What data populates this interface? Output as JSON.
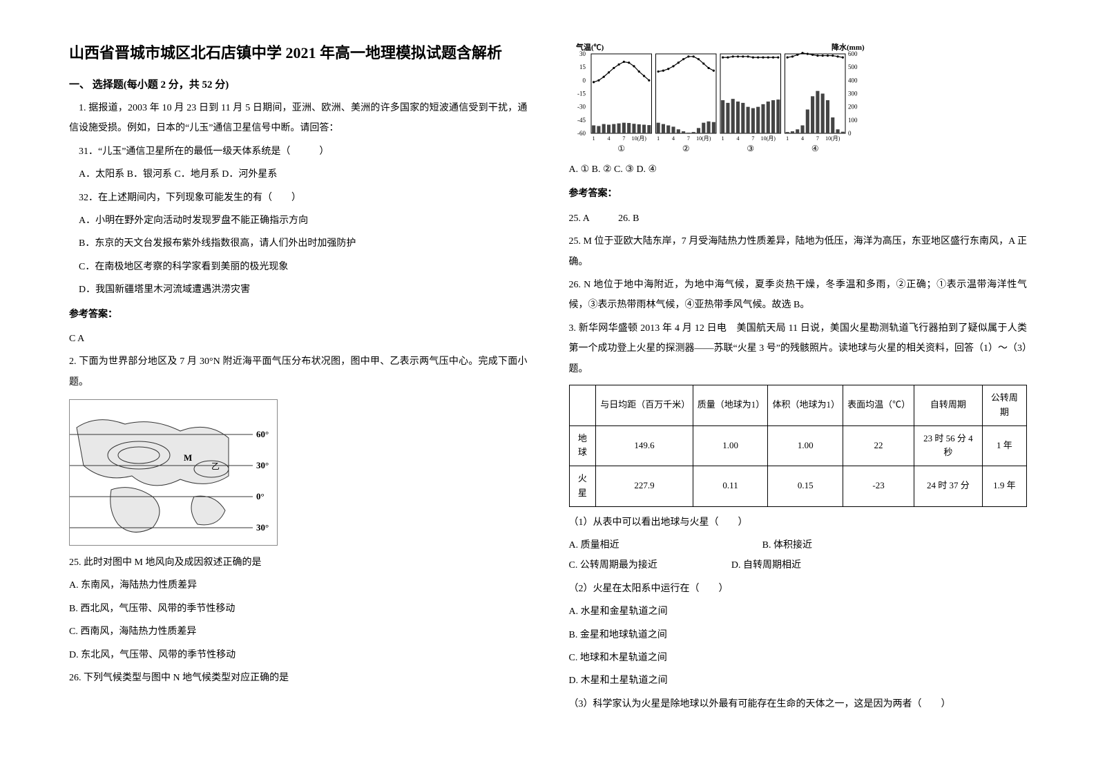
{
  "title": "山西省晋城市城区北石店镇中学 2021 年高一地理模拟试题含解析",
  "section1_title": "一、 选择题(每小题 2 分，共 52 分)",
  "q1": {
    "stem": "1. 据报道，2003 年 10 月 23 日到 11 月 5 日期间，亚洲、欧洲、美洲的许多国家的短波通信受到干扰，通信设施受损。例如，日本的“儿玉”通信卫星信号中断。请回答：",
    "sub31": "31．“儿玉”通信卫星所在的最低一级天体系统是（　　　）",
    "sub31_opts": "A．太阳系 B．银河系 C．地月系 D．河外星系",
    "sub32": "32．在上述期间内，下列现象可能发生的有（　　）",
    "sub32_a": "A．小明在野外定向活动时发现罗盘不能正确指示方向",
    "sub32_b": "B．东京的天文台发报布紫外线指数很高，请人们外出时加强防护",
    "sub32_c": "C．在南极地区考察的科学家看到美丽的极光现象",
    "sub32_d": "D．我国新疆塔里木河流域遭遇洪涝灾害",
    "answer_label": "参考答案：",
    "answer": "C A"
  },
  "q2": {
    "stem": "2. 下面为世界部分地区及 7 月 30°N 附近海平面气压分布状况图，图中甲、乙表示两气压中心。完成下面小题。",
    "map": {
      "lats": [
        "60°",
        "30°",
        "0°",
        "30°"
      ],
      "labels": [
        "M",
        "乙"
      ],
      "line_color": "#333333",
      "land_color": "#dddddd"
    },
    "q25": "25.  此时对图中 M 地风向及成因叙述正确的是",
    "q25_a": "A.  东南风，海陆热力性质差异",
    "q25_b": "B.  西北风，气压带、风带的季节性移动",
    "q25_c": "C.  西南风，海陆热力性质差异",
    "q25_d": "D.  东北风，气压带、风带的季节性移动",
    "q26": "26.  下列气候类型与图中 N 地气候类型对应正确的是"
  },
  "chart": {
    "title_left": "气温(℃)",
    "title_right": "降水(mm)",
    "y_left_ticks": [
      "30",
      "15",
      "0",
      "-15",
      "-30",
      "-45",
      "-60"
    ],
    "y_right_ticks": [
      "600",
      "500",
      "400",
      "300",
      "200",
      "100",
      "0"
    ],
    "x_ticks": [
      "1",
      "4",
      "7",
      "10(月)"
    ],
    "panel_labels": [
      "①",
      "②",
      "③",
      "④"
    ],
    "line_color": "#000000",
    "bar_color": "#444444",
    "grid_color": "#000000",
    "bg_color": "#ffffff",
    "series": {
      "p1": {
        "temp": [
          -2,
          0,
          4,
          9,
          14,
          18,
          21,
          20,
          16,
          10,
          5,
          0
        ],
        "prec": [
          60,
          55,
          70,
          65,
          70,
          75,
          80,
          78,
          72,
          68,
          65,
          62
        ]
      },
      "p2": {
        "temp": [
          10,
          11,
          13,
          16,
          20,
          24,
          27,
          27,
          24,
          19,
          14,
          11
        ],
        "prec": [
          80,
          70,
          60,
          50,
          30,
          15,
          5,
          10,
          40,
          80,
          90,
          85
        ]
      },
      "p3": {
        "temp": [
          26,
          26,
          27,
          27,
          27,
          27,
          26,
          26,
          26,
          26,
          26,
          26
        ],
        "prec": [
          250,
          230,
          260,
          240,
          230,
          200,
          190,
          200,
          220,
          240,
          250,
          255
        ]
      },
      "p4": {
        "temp": [
          26,
          27,
          29,
          31,
          30,
          29,
          28,
          28,
          28,
          28,
          27,
          26
        ],
        "prec": [
          10,
          15,
          30,
          60,
          180,
          280,
          320,
          300,
          250,
          120,
          30,
          12
        ]
      }
    }
  },
  "q2_right": {
    "opts": "A.  ①  B.  ②  C.  ③  D.  ④",
    "answer_label": "参考答案：",
    "ans_line": "25.  A　　　26.  B",
    "exp25": "25. M 位于亚欧大陆东岸，7 月受海陆热力性质差异，陆地为低压，海洋为高压，东亚地区盛行东南风，A 正确。",
    "exp26": "26. N 地位于地中海附近，为地中海气候，夏季炎热干燥，冬季温和多雨，②正确；①表示温带海洋性气候，③表示热带雨林气候，④亚热带季风气候。故选 B。"
  },
  "q3": {
    "stem": "3. 新华网华盛顿 2013 年 4 月 12 日电　美国航天局 11 日说，美国火星勘测轨道飞行器拍到了疑似属于人类第一个成功登上火星的探测器——苏联“火星 3 号”的残骸照片。读地球与火星的相关资料，回答（1）～（3）题。",
    "table": {
      "headers": [
        "",
        "与日均距（百万千米）",
        "质量（地球为1）",
        "体积（地球为1）",
        "表面均温（℃）",
        "自转周期",
        "公转周期"
      ],
      "rows": [
        [
          "地球",
          "149.6",
          "1.00",
          "1.00",
          "22",
          "23 时 56 分 4 秒",
          "1 年"
        ],
        [
          "火星",
          "227.9",
          "0.11",
          "0.15",
          "-23",
          "24 时 37 分",
          "1.9 年"
        ]
      ]
    },
    "sub1": "（1）从表中可以看出地球与火星（　　）",
    "sub1_a": "A. 质量相近",
    "sub1_b": "B. 体积接近",
    "sub1_c": "C. 公转周期最为接近",
    "sub1_d": "D. 自转周期相近",
    "sub2": "（2）火星在太阳系中运行在（　　）",
    "sub2_a": "A. 水星和金星轨道之间",
    "sub2_b": "B. 金星和地球轨道之间",
    "sub2_c": "C. 地球和木星轨道之间",
    "sub2_d": "D. 木星和土星轨道之间",
    "sub3": "（3）科学家认为火星是除地球以外最有可能存在生命的天体之一，这是因为两者（　　）"
  }
}
